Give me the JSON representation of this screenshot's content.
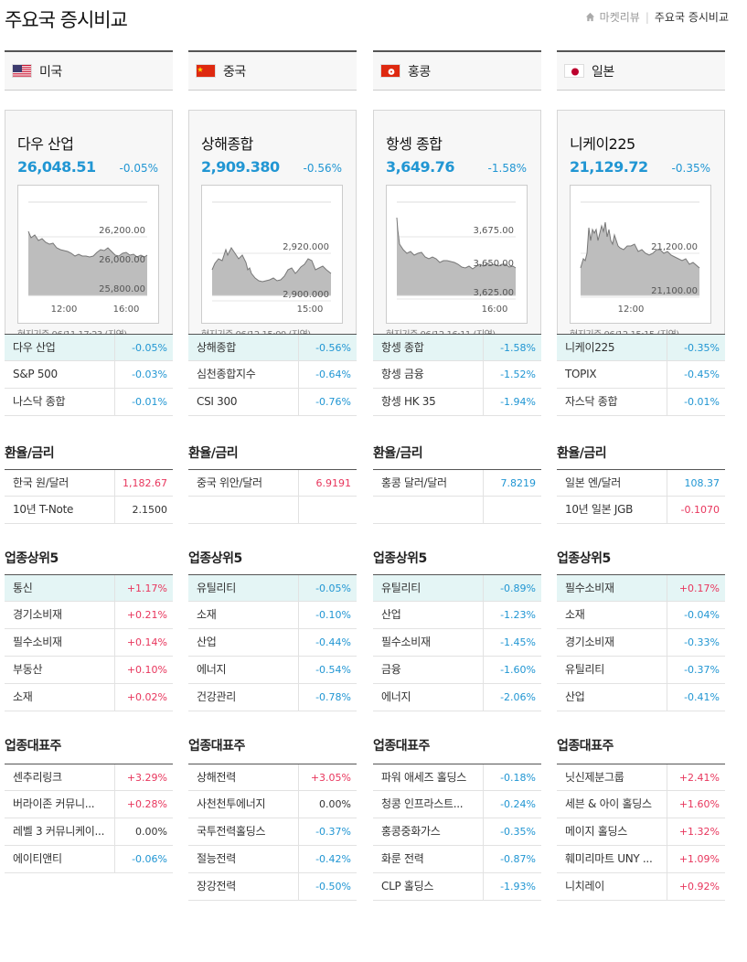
{
  "header": {
    "title": "주요국 증시비교",
    "breadcrumb": [
      "마켓리뷰",
      "주요국 증시비교"
    ]
  },
  "colors": {
    "down": "#2196d3",
    "up": "#e8365d",
    "highlight": "#e4f5f5"
  },
  "section_titles": {
    "fx": "환율/금리",
    "sectors": "업종상위5",
    "stocks": "업종대표주"
  },
  "columns": [
    {
      "country": "미국",
      "flag_icon": "us-flag-icon",
      "index": {
        "name": "다우 산업",
        "value": "26,048.51",
        "change": "-0.05%",
        "note": "현지기준 06/11 17:23 (지연)"
      },
      "chart": {
        "y_labels": [
          "26,200.00",
          "26,000.00",
          "25,800.00"
        ],
        "x_labels": [
          "12:00",
          "16:00"
        ]
      },
      "indices": [
        {
          "name": "다우 산업",
          "value": "-0.05%",
          "dir": "down"
        },
        {
          "name": "S&P 500",
          "value": "-0.03%",
          "dir": "down"
        },
        {
          "name": "나스닥 종합",
          "value": "-0.01%",
          "dir": "down"
        }
      ],
      "fx": [
        {
          "name": "한국 원/달러",
          "value": "1,182.67",
          "dir": "up"
        },
        {
          "name": "10년 T-Note",
          "value": "2.1500",
          "dir": "flat"
        }
      ],
      "sectors": [
        {
          "name": "통신",
          "value": "+1.17%",
          "dir": "up"
        },
        {
          "name": "경기소비재",
          "value": "+0.21%",
          "dir": "up"
        },
        {
          "name": "필수소비재",
          "value": "+0.14%",
          "dir": "up"
        },
        {
          "name": "부동산",
          "value": "+0.10%",
          "dir": "up"
        },
        {
          "name": "소재",
          "value": "+0.02%",
          "dir": "up"
        }
      ],
      "stocks": [
        {
          "name": "센추리링크",
          "value": "+3.29%",
          "dir": "up"
        },
        {
          "name": "버라이존 커뮤니...",
          "value": "+0.28%",
          "dir": "up"
        },
        {
          "name": "레벨 3 커뮤니케이...",
          "value": "0.00%",
          "dir": "flat"
        },
        {
          "name": "에이티앤티",
          "value": "-0.06%",
          "dir": "down"
        }
      ]
    },
    {
      "country": "중국",
      "flag_icon": "china-flag-icon",
      "index": {
        "name": "상해종합",
        "value": "2,909.380",
        "change": "-0.56%",
        "note": "현지기준 06/12 15:00 (지연)"
      },
      "chart": {
        "y_labels": [
          "2,920.000",
          "2,900.000"
        ],
        "x_labels": [
          "15:00"
        ]
      },
      "indices": [
        {
          "name": "상해종합",
          "value": "-0.56%",
          "dir": "down"
        },
        {
          "name": "심천종합지수",
          "value": "-0.64%",
          "dir": "down"
        },
        {
          "name": "CSI 300",
          "value": "-0.76%",
          "dir": "down"
        }
      ],
      "fx": [
        {
          "name": "중국 위안/달러",
          "value": "6.9191",
          "dir": "up"
        },
        {
          "name": "",
          "value": "",
          "dir": "flat"
        }
      ],
      "sectors": [
        {
          "name": "유틸리티",
          "value": "-0.05%",
          "dir": "down"
        },
        {
          "name": "소재",
          "value": "-0.10%",
          "dir": "down"
        },
        {
          "name": "산업",
          "value": "-0.44%",
          "dir": "down"
        },
        {
          "name": "에너지",
          "value": "-0.54%",
          "dir": "down"
        },
        {
          "name": "건강관리",
          "value": "-0.78%",
          "dir": "down"
        }
      ],
      "stocks": [
        {
          "name": "상해전력",
          "value": "+3.05%",
          "dir": "up"
        },
        {
          "name": "사천천투에너지",
          "value": "0.00%",
          "dir": "flat"
        },
        {
          "name": "국투전력홀딩스",
          "value": "-0.37%",
          "dir": "down"
        },
        {
          "name": "절능전력",
          "value": "-0.42%",
          "dir": "down"
        },
        {
          "name": "장강전력",
          "value": "-0.50%",
          "dir": "down"
        }
      ]
    },
    {
      "country": "홍콩",
      "flag_icon": "hongkong-flag-icon",
      "index": {
        "name": "항셍 종합",
        "value": "3,649.76",
        "change": "-1.58%",
        "note": "현지기준 06/12 16:11 (지연)"
      },
      "chart": {
        "y_labels": [
          "3,675.00",
          "3,650.00",
          "3,625.00"
        ],
        "x_labels": [
          "16:00"
        ]
      },
      "indices": [
        {
          "name": "항셍 종합",
          "value": "-1.58%",
          "dir": "down"
        },
        {
          "name": "항셍 금융",
          "value": "-1.52%",
          "dir": "down"
        },
        {
          "name": "항셍 HK 35",
          "value": "-1.94%",
          "dir": "down"
        }
      ],
      "fx": [
        {
          "name": "홍콩 달러/달러",
          "value": "7.8219",
          "dir": "down"
        },
        {
          "name": "",
          "value": "",
          "dir": "flat"
        }
      ],
      "sectors": [
        {
          "name": "유틸리티",
          "value": "-0.89%",
          "dir": "down"
        },
        {
          "name": "산업",
          "value": "-1.23%",
          "dir": "down"
        },
        {
          "name": "필수소비재",
          "value": "-1.45%",
          "dir": "down"
        },
        {
          "name": "금융",
          "value": "-1.60%",
          "dir": "down"
        },
        {
          "name": "에너지",
          "value": "-2.06%",
          "dir": "down"
        }
      ],
      "stocks": [
        {
          "name": "파워 애세즈 홀딩스",
          "value": "-0.18%",
          "dir": "down"
        },
        {
          "name": "청콩 인프라스트...",
          "value": "-0.24%",
          "dir": "down"
        },
        {
          "name": "홍콩중화가스",
          "value": "-0.35%",
          "dir": "down"
        },
        {
          "name": "화룬 전력",
          "value": "-0.87%",
          "dir": "down"
        },
        {
          "name": "CLP 홀딩스",
          "value": "-1.93%",
          "dir": "down"
        }
      ]
    },
    {
      "country": "일본",
      "flag_icon": "japan-flag-icon",
      "index": {
        "name": "니케이225",
        "value": "21,129.72",
        "change": "-0.35%",
        "note": "현지기준 06/12 15:15 (지연)"
      },
      "chart": {
        "y_labels": [
          "21,200.00",
          "21,100.00"
        ],
        "x_labels": [
          "12:00"
        ]
      },
      "indices": [
        {
          "name": "니케이225",
          "value": "-0.35%",
          "dir": "down"
        },
        {
          "name": "TOPIX",
          "value": "-0.45%",
          "dir": "down"
        },
        {
          "name": "자스닥 종합",
          "value": "-0.01%",
          "dir": "down"
        }
      ],
      "fx": [
        {
          "name": "일본 엔/달러",
          "value": "108.37",
          "dir": "down"
        },
        {
          "name": "10년 일본 JGB",
          "value": "-0.1070",
          "dir": "up"
        }
      ],
      "sectors": [
        {
          "name": "필수소비재",
          "value": "+0.17%",
          "dir": "up"
        },
        {
          "name": "소재",
          "value": "-0.04%",
          "dir": "down"
        },
        {
          "name": "경기소비재",
          "value": "-0.33%",
          "dir": "down"
        },
        {
          "name": "유틸리티",
          "value": "-0.37%",
          "dir": "down"
        },
        {
          "name": "산업",
          "value": "-0.41%",
          "dir": "down"
        }
      ],
      "stocks": [
        {
          "name": "닛신제분그룹",
          "value": "+2.41%",
          "dir": "up"
        },
        {
          "name": "세븐 & 아이 홀딩스",
          "value": "+1.60%",
          "dir": "up"
        },
        {
          "name": "메이지 홀딩스",
          "value": "+1.32%",
          "dir": "up"
        },
        {
          "name": "훼미리마트 UNY ...",
          "value": "+1.09%",
          "dir": "up"
        },
        {
          "name": "니치레이",
          "value": "+0.92%",
          "dir": "up"
        }
      ]
    }
  ]
}
